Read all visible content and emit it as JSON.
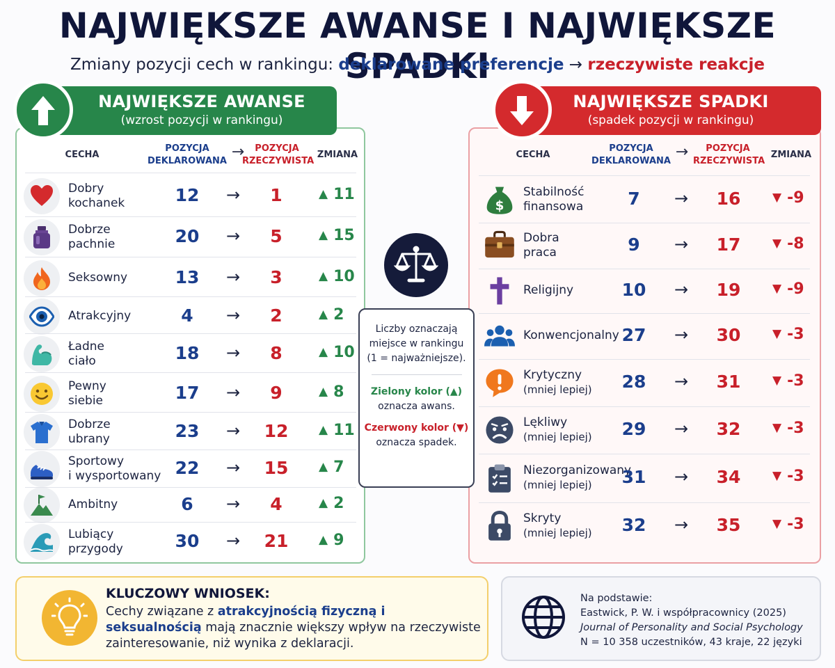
{
  "title": "NAJWIĘKSZE AWANSE I NAJWIĘKSZE SPADKI",
  "subtitle": {
    "prefix": "Zmiany pozycji cech w rankingu: ",
    "declared": "deklarowane preferencje",
    "arrow": " → ",
    "actual": "rzeczywiste reakcje"
  },
  "colors": {
    "green": "#27864a",
    "red": "#d42a2d",
    "navy": "#1b3e8c",
    "dark": "#10163a"
  },
  "columns": {
    "trait": "CECHA",
    "declared_l1": "POZYCJA",
    "declared_l2": "DEKLAROWANA",
    "arrow": "→",
    "actual_l1": "POZYCJA",
    "actual_l2": "RZECZYWISTA",
    "change": "ZMIANA"
  },
  "gains": {
    "title": "NAJWIĘKSZE AWANSE",
    "subtitle": "(wzrost pozycji w rankingu)",
    "icon": "arrow-up-icon",
    "rows": [
      {
        "icon": "heart-icon",
        "l1": "Dobry",
        "l2": "kochanek",
        "declared": "12",
        "actual": "1",
        "change": "11"
      },
      {
        "icon": "perfume-icon",
        "l1": "Dobrze",
        "l2": "pachnie",
        "declared": "20",
        "actual": "5",
        "change": "15"
      },
      {
        "icon": "flame-icon",
        "l1": "Seksowny",
        "l2": "",
        "declared": "13",
        "actual": "3",
        "change": "10"
      },
      {
        "icon": "eye-icon",
        "l1": "Atrakcyjny",
        "l2": "",
        "declared": "4",
        "actual": "2",
        "change": "2"
      },
      {
        "icon": "muscle-icon",
        "l1": "Ładne",
        "l2": "ciało",
        "declared": "18",
        "actual": "8",
        "change": "10"
      },
      {
        "icon": "smile-icon",
        "l1": "Pewny",
        "l2": "siebie",
        "declared": "17",
        "actual": "9",
        "change": "8"
      },
      {
        "icon": "shirt-icon",
        "l1": "Dobrze",
        "l2": "ubrany",
        "declared": "23",
        "actual": "12",
        "change": "11"
      },
      {
        "icon": "sneaker-icon",
        "l1": "Sportowy",
        "l2": "i wysportowany",
        "declared": "22",
        "actual": "15",
        "change": "7"
      },
      {
        "icon": "mountain-flag-icon",
        "l1": "Ambitny",
        "l2": "",
        "declared": "6",
        "actual": "4",
        "change": "2"
      },
      {
        "icon": "wave-icon",
        "l1": "Lubiący",
        "l2": "przygody",
        "declared": "30",
        "actual": "21",
        "change": "9"
      }
    ]
  },
  "drops": {
    "title": "NAJWIĘKSZE SPADKI",
    "subtitle": "(spadek pozycji w rankingu)",
    "icon": "arrow-down-icon",
    "rows": [
      {
        "icon": "money-bag-icon",
        "l1": "Stabilność",
        "l2": "finansowa",
        "note": false,
        "declared": "7",
        "actual": "16",
        "change": "-9"
      },
      {
        "icon": "briefcase-icon",
        "l1": "Dobra",
        "l2": "praca",
        "note": false,
        "declared": "9",
        "actual": "17",
        "change": "-8"
      },
      {
        "icon": "cross-icon",
        "l1": "Religijny",
        "l2": "",
        "note": false,
        "declared": "10",
        "actual": "19",
        "change": "-9"
      },
      {
        "icon": "people-icon",
        "l1": "Konwencjonalny",
        "l2": "",
        "note": false,
        "declared": "27",
        "actual": "30",
        "change": "-3"
      },
      {
        "icon": "speech-exclamation-icon",
        "l1": "Krytyczny",
        "l2": "(mniej lepiej)",
        "note": true,
        "declared": "28",
        "actual": "31",
        "change": "-3"
      },
      {
        "icon": "worried-face-icon",
        "l1": "Lękliwy",
        "l2": "(mniej lepiej)",
        "note": true,
        "declared": "29",
        "actual": "32",
        "change": "-3"
      },
      {
        "icon": "clipboard-icon",
        "l1": "Niezorganizowany",
        "l2": "(mniej lepiej)",
        "note": true,
        "declared": "31",
        "actual": "34",
        "change": "-3"
      },
      {
        "icon": "padlock-icon",
        "l1": "Skryty",
        "l2": "(mniej lepiej)",
        "note": true,
        "declared": "32",
        "actual": "35",
        "change": "-3"
      }
    ]
  },
  "legend": {
    "icon": "scale-icon",
    "l1": "Liczby oznaczają",
    "l2": "miejsce w rankingu",
    "l3": "(1 = najważniejsze).",
    "green_l1": "Zielony kolor (▲)",
    "green_l2": "oznacza awans.",
    "red_l1": "Czerwony kolor (▼)",
    "red_l2": "oznacza spadek."
  },
  "key": {
    "icon": "lightbulb-icon",
    "title": "KLUCZOWY WNIOSEK:",
    "text_pre": "Cechy związane z ",
    "text_hl": "atrakcyjnością fizyczną i seksualnością",
    "text_post": " mają znacznie większy wpływ na rzeczywiste zainteresowanie, niż wynika z deklaracji."
  },
  "source": {
    "icon": "globe-icon",
    "label": "Na podstawie:",
    "authors": "Eastwick, P. W. i współpracownicy (2025)",
    "journal": "Journal of Personality and Social Psychology",
    "sample": "N = 10 358 uczestników, 43 kraje, 22 języki"
  }
}
